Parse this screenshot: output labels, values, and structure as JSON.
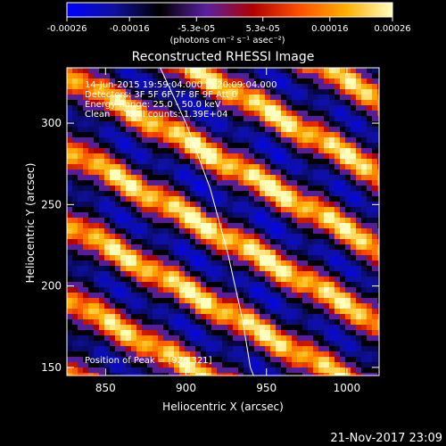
{
  "chart_data": {
    "type": "heatmap",
    "title": "Reconstructed RHESSI Image",
    "xlabel": "Heliocentric X (arcsec)",
    "ylabel": "Heliocentric Y (arcsec)",
    "xlim": [
      826,
      1020
    ],
    "ylim": [
      145,
      334
    ],
    "x_ticks": [
      850,
      900,
      950,
      1000
    ],
    "y_ticks": [
      150,
      200,
      250,
      300
    ],
    "colorbar": {
      "range": [
        -0.00026,
        0.00026
      ],
      "tick_labels": [
        "-0.00026",
        "-0.00016",
        "-5.3e-05",
        "5.3e-05",
        "0.00016",
        "0.00026"
      ],
      "tick_values": [
        -0.00026,
        -0.00016,
        -5.3e-05,
        5.3e-05,
        0.00016,
        0.00026
      ],
      "unit_label": "(photons cm⁻² s⁻¹ asec⁻²)",
      "colormap": [
        "#0000ff",
        "#1010a0",
        "#000000",
        "#5a20a0",
        "#b00000",
        "#ff5000",
        "#ffb000",
        "#ffffc0"
      ]
    },
    "annotations": [
      "14-Jun-2015 19:59:04.000 to 20:09:04.000",
      "Detectors: 3F 5F 6F 7F 8F 9F Att 0",
      "Energy Range: 25.0 - 50.0 keV",
      "Clean     Total counts: 1.39E+04"
    ],
    "peak_label": "Position of Peak = [926,321]",
    "peak_position": [
      926,
      321
    ],
    "solar_limb": [
      [
        884,
        334
      ],
      [
        900,
        300
      ],
      [
        915,
        260
      ],
      [
        926,
        220
      ],
      [
        935,
        180
      ],
      [
        940,
        150
      ],
      [
        942,
        145
      ]
    ],
    "pattern": {
      "description_free": true,
      "band_slope": -0.55,
      "band_period_y": 46,
      "positive_band_offsets": [
        330,
        284,
        238,
        192,
        146,
        100
      ],
      "peak_value": 0.00026,
      "min_value": -0.00026
    }
  },
  "footer_timestamp": "21-Nov-2017 23:09"
}
